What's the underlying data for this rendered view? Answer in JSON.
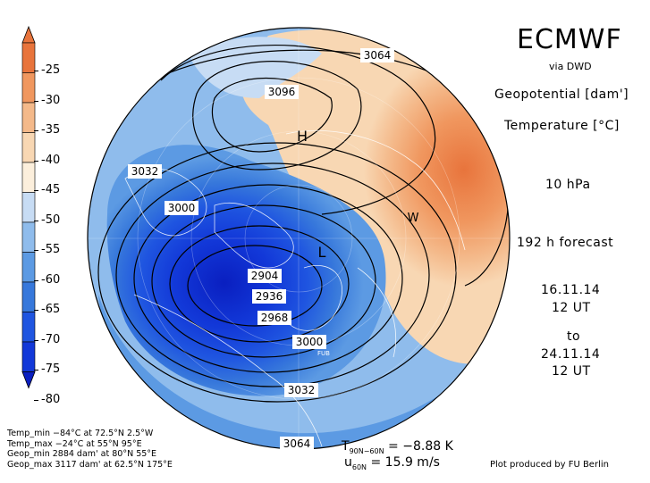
{
  "header": {
    "title": "ECMWF",
    "via": "via DWD",
    "field1": "Geopotential [dam']",
    "field2": "Temperature [°C]",
    "level": "10 hPa",
    "forecast": "192 h forecast",
    "init_date": "16.11.14",
    "init_time": "12 UT",
    "to": "to",
    "valid_date": "24.11.14",
    "valid_time": "12 UT"
  },
  "colorbar": {
    "labels": [
      "-25",
      "-30",
      "-35",
      "-40",
      "-45",
      "-50",
      "-55",
      "-60",
      "-65",
      "-70",
      "-75",
      "-80"
    ],
    "colors": [
      "#e8743c",
      "#f0975f",
      "#f4b98a",
      "#f8d7b3",
      "#fcefdc",
      "#c7dcf4",
      "#8fbcec",
      "#5c9ae3",
      "#3778db",
      "#1f55e0",
      "#1238d8",
      "#0a1fc0"
    ]
  },
  "contours": {
    "labels": [
      "3064",
      "3096",
      "3032",
      "3000",
      "2904",
      "2936",
      "2968",
      "3000",
      "3032",
      "3064"
    ],
    "high_mark": "H",
    "low_mark": "L",
    "warm_mark": "W",
    "fub_mark": "FUB"
  },
  "footer": {
    "lines": [
      "Temp_min −84°C at 72.5°N 2.5°W",
      "Temp_max −24°C at 55°N 95°E",
      "Geop_min 2884 dam' at 80°N 55°E",
      "Geop_max 3117 dam' at 62.5°N 175°E"
    ],
    "t_label": "T",
    "t_sub": "90N−60N",
    "t_value": "= −8.88 K",
    "u_label": "u",
    "u_sub": "60N",
    "u_value": "= 15.9 m/s",
    "credit": "Plot produced by FU Berlin"
  }
}
